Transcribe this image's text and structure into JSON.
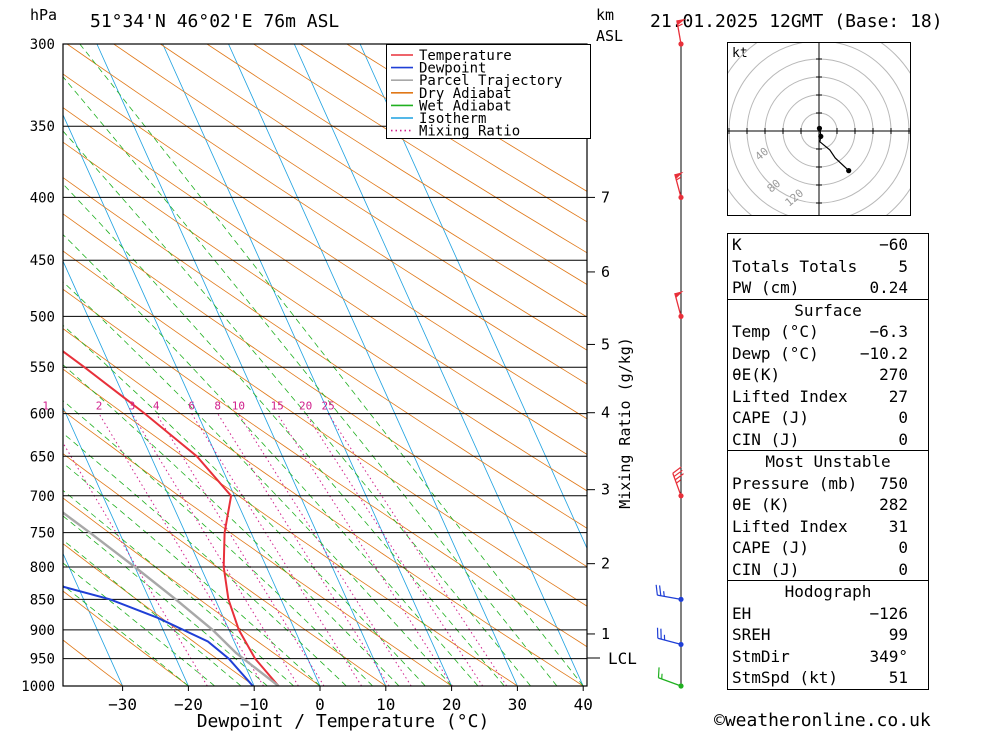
{
  "header": {
    "hpa_unit": "hPa",
    "location": "51°34'N  46°02'E  76m  ASL",
    "km_unit_line1": "km",
    "km_unit_line2": "ASL",
    "datetime": "21.01.2025 12GMT (Base: 18)"
  },
  "axes": {
    "xlabel": "Dewpoint / Temperature (°C)",
    "mixing_ratio_label": "Mixing Ratio (g/kg)",
    "lcl_label": "LCL"
  },
  "copyright": "©weatheronline.co.uk",
  "legend": [
    {
      "label": "Temperature",
      "color": "#e8303a",
      "style": "solid"
    },
    {
      "label": "Dewpoint",
      "color": "#1f3fd6",
      "style": "solid"
    },
    {
      "label": "Parcel Trajectory",
      "color": "#a8a8a8",
      "style": "solid"
    },
    {
      "label": "Dry Adiabat",
      "color": "#e07818",
      "style": "solid"
    },
    {
      "label": "Wet Adiabat",
      "color": "#20b020",
      "style": "solid"
    },
    {
      "label": "Isotherm",
      "color": "#1ca0e0",
      "style": "solid"
    },
    {
      "label": "Mixing Ratio",
      "color": "#d0208c",
      "style": "dotted"
    }
  ],
  "chart_data": {
    "type": "line",
    "title": "51°34'N  46°02'E  76m  ASL",
    "subtitle": "21.01.2025 12GMT (Base: 18)",
    "xlabel": "Dewpoint / Temperature (°C)",
    "ylabel": "hPa",
    "pressure_levels": [
      300,
      350,
      400,
      450,
      500,
      550,
      600,
      650,
      700,
      750,
      800,
      850,
      900,
      950,
      1000
    ],
    "temperature_ticks": [
      -30,
      -20,
      -10,
      0,
      10,
      20,
      30,
      40
    ],
    "km_ticks": [
      {
        "km": "1",
        "p": 907
      },
      {
        "km": "2",
        "p": 795
      },
      {
        "km": "3",
        "p": 692
      },
      {
        "km": "4",
        "p": 599
      },
      {
        "km": "5",
        "p": 527
      },
      {
        "km": "6",
        "p": 460
      },
      {
        "km": "7",
        "p": 400
      }
    ],
    "lcl_pressure": 940,
    "mixing_ratio_values": [
      "1",
      "2",
      "3",
      "4",
      "6",
      "8",
      "10",
      "15",
      "20",
      "25"
    ],
    "series": [
      {
        "name": "Temperature",
        "color": "#e8303a",
        "points": [
          [
            1000,
            -6.3
          ],
          [
            950,
            -8.0
          ],
          [
            900,
            -8.5
          ],
          [
            850,
            -8.0
          ],
          [
            800,
            -6.5
          ],
          [
            750,
            -4.0
          ],
          [
            700,
            -0.5
          ],
          [
            650,
            -3.0
          ],
          [
            600,
            -8.0
          ],
          [
            550,
            -14.0
          ],
          [
            500,
            -21.0
          ],
          [
            450,
            -28.5
          ],
          [
            400,
            -37.0
          ],
          [
            350,
            -46.0
          ],
          [
            300,
            -55.0
          ]
        ]
      },
      {
        "name": "Dewpoint",
        "color": "#1f3fd6",
        "points": [
          [
            1000,
            -10.2
          ],
          [
            950,
            -12.0
          ],
          [
            920,
            -14.0
          ],
          [
            880,
            -20.0
          ],
          [
            850,
            -26.0
          ],
          [
            800,
            -42.0
          ],
          [
            760,
            -45.0
          ],
          [
            700,
            -45.0
          ],
          [
            650,
            -42.0
          ],
          [
            620,
            -43.5
          ],
          [
            600,
            -44.0
          ],
          [
            550,
            -28.0
          ],
          [
            500,
            -22.5
          ],
          [
            450,
            -29.0
          ],
          [
            400,
            -36.0
          ],
          [
            350,
            -47.0
          ],
          [
            300,
            -58.0
          ]
        ]
      },
      {
        "name": "Parcel Trajectory",
        "color": "#a8a8a8",
        "points": [
          [
            1000,
            -6.3
          ],
          [
            940,
            -10.5
          ],
          [
            900,
            -12.5
          ],
          [
            850,
            -16.0
          ],
          [
            800,
            -20.0
          ],
          [
            750,
            -24.5
          ],
          [
            700,
            -29.5
          ],
          [
            650,
            -35.0
          ],
          [
            600,
            -41.0
          ],
          [
            550,
            -47.5
          ],
          [
            500,
            -55.0
          ],
          [
            450,
            -63.0
          ],
          [
            400,
            -72.0
          ],
          [
            350,
            -82.0
          ],
          [
            300,
            -93.0
          ]
        ]
      }
    ],
    "wind_barbs": [
      {
        "p": 300,
        "dir": 350,
        "kt": 55
      },
      {
        "p": 400,
        "dir": 345,
        "kt": 55
      },
      {
        "p": 500,
        "dir": 345,
        "kt": 50
      },
      {
        "p": 700,
        "dir": 340,
        "kt": 35
      },
      {
        "p": 850,
        "dir": 280,
        "kt": 25
      },
      {
        "p": 925,
        "dir": 285,
        "kt": 25
      },
      {
        "p": 1000,
        "dir": 290,
        "kt": 15
      }
    ],
    "hodograph": {
      "unit": "kt",
      "ring_labels": [
        "40",
        "80",
        "120"
      ],
      "points": [
        [
          0.5,
          3.0
        ],
        [
          1.5,
          -1.0
        ],
        [
          2.0,
          -6.0
        ],
        [
          1.0,
          -12.0
        ],
        [
          12.0,
          -21.0
        ],
        [
          18.0,
          -30.0
        ],
        [
          33.0,
          -44.0
        ]
      ]
    }
  },
  "indices": {
    "general": [
      {
        "label": "K",
        "value": "-60"
      },
      {
        "label": "Totals Totals",
        "value": "5"
      },
      {
        "label": "PW (cm)",
        "value": "0.24"
      }
    ],
    "surface_title": "Surface",
    "surface": [
      {
        "label": "Temp (°C)",
        "value": "-6.3"
      },
      {
        "label": "Dewp (°C)",
        "value": "-10.2"
      },
      {
        "label": "θE(K)",
        "value": "270"
      },
      {
        "label": "Lifted Index",
        "value": "27"
      },
      {
        "label": "CAPE (J)",
        "value": "0"
      },
      {
        "label": "CIN (J)",
        "value": "0"
      }
    ],
    "mu_title": "Most Unstable",
    "mu": [
      {
        "label": "Pressure (mb)",
        "value": "750"
      },
      {
        "label": "θE (K)",
        "value": "282"
      },
      {
        "label": "Lifted Index",
        "value": "31"
      },
      {
        "label": "CAPE (J)",
        "value": "0"
      },
      {
        "label": "CIN (J)",
        "value": "0"
      }
    ],
    "hodo_title": "Hodograph",
    "hodo": [
      {
        "label": "EH",
        "value": "-126"
      },
      {
        "label": "SREH",
        "value": "99"
      },
      {
        "label": "StmDir",
        "value": "349°"
      },
      {
        "label": "StmSpd (kt)",
        "value": "51"
      }
    ]
  }
}
